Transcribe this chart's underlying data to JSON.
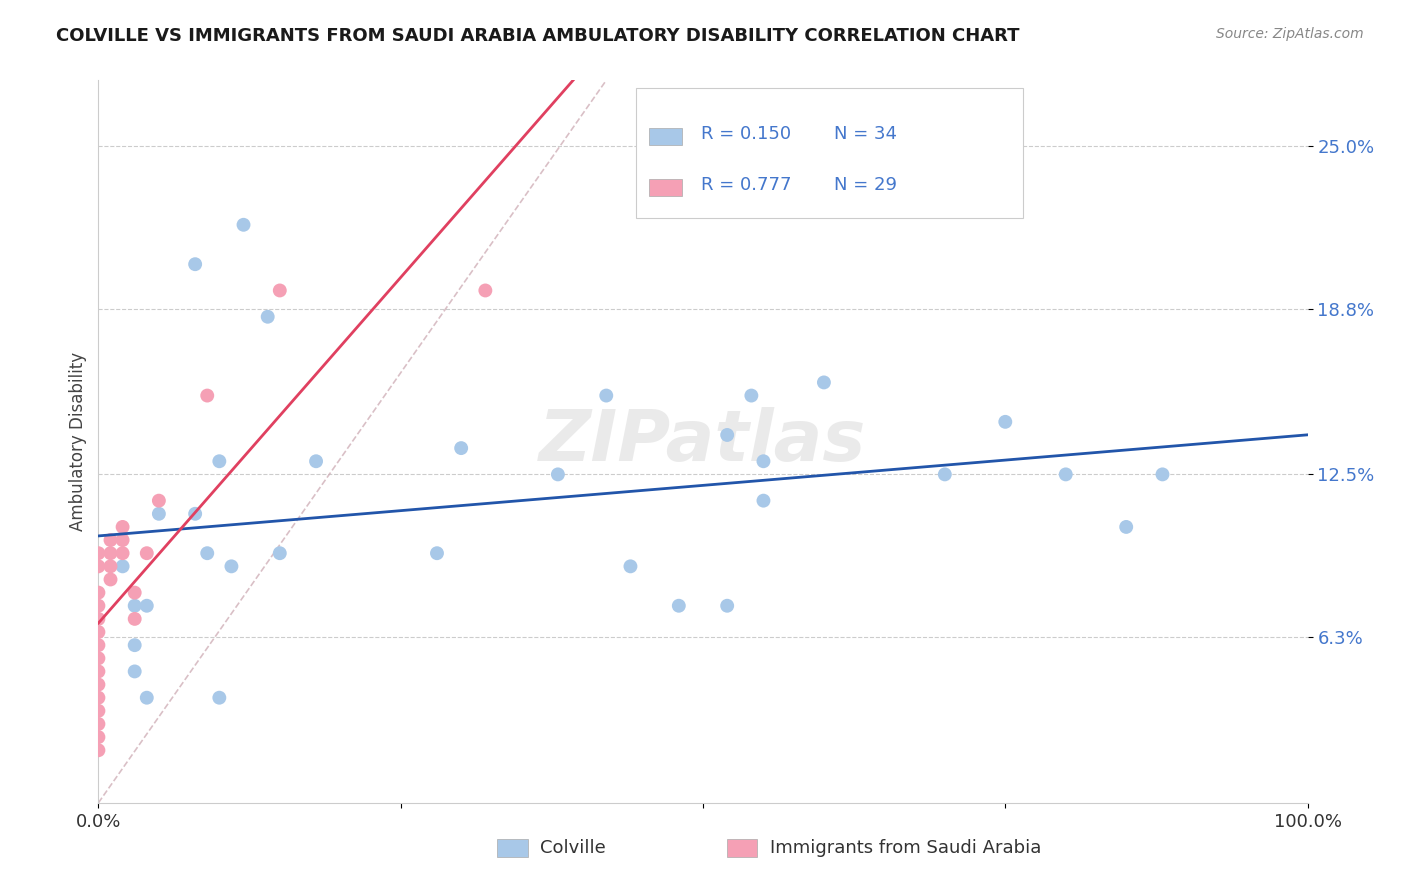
{
  "title": "COLVILLE VS IMMIGRANTS FROM SAUDI ARABIA AMBULATORY DISABILITY CORRELATION CHART",
  "source": "Source: ZipAtlas.com",
  "ylabel": "Ambulatory Disability",
  "ytick_values": [
    0.063,
    0.125,
    0.188,
    0.25
  ],
  "ytick_labels": [
    "6.3%",
    "12.5%",
    "18.8%",
    "25.0%"
  ],
  "xmin": 0.0,
  "xmax": 1.0,
  "ymin": 0.0,
  "ymax": 0.275,
  "colville_color": "#a8c8e8",
  "saudi_color": "#f5a0b5",
  "colville_line_color": "#2255aa",
  "saudi_line_color": "#e04060",
  "dashed_line_color": "#d0b0b8",
  "background_color": "#ffffff",
  "watermark": "ZIPatlas",
  "title_color": "#1a1a1a",
  "source_color": "#888888",
  "tick_color": "#4477cc",
  "colville_x": [
    0.05,
    0.12,
    0.14,
    0.08,
    0.08,
    0.09,
    0.1,
    0.11,
    0.02,
    0.03,
    0.03,
    0.04,
    0.03,
    0.04,
    0.15,
    0.18,
    0.38,
    0.42,
    0.55,
    0.55,
    0.6,
    0.7,
    0.75,
    0.8,
    0.85,
    0.88,
    0.44,
    0.48,
    0.52,
    0.54,
    0.52,
    0.28,
    0.1,
    0.3
  ],
  "colville_y": [
    0.11,
    0.22,
    0.185,
    0.205,
    0.11,
    0.095,
    0.13,
    0.09,
    0.09,
    0.075,
    0.06,
    0.075,
    0.05,
    0.04,
    0.095,
    0.13,
    0.125,
    0.155,
    0.13,
    0.115,
    0.16,
    0.125,
    0.145,
    0.125,
    0.105,
    0.125,
    0.09,
    0.075,
    0.075,
    0.155,
    0.14,
    0.095,
    0.04,
    0.135
  ],
  "saudi_x": [
    0.0,
    0.0,
    0.0,
    0.0,
    0.0,
    0.0,
    0.0,
    0.0,
    0.0,
    0.0,
    0.0,
    0.0,
    0.0,
    0.0,
    0.0,
    0.01,
    0.01,
    0.01,
    0.01,
    0.02,
    0.02,
    0.02,
    0.03,
    0.03,
    0.04,
    0.05,
    0.09,
    0.15,
    0.32
  ],
  "saudi_y": [
    0.02,
    0.025,
    0.03,
    0.035,
    0.04,
    0.045,
    0.05,
    0.055,
    0.06,
    0.065,
    0.07,
    0.075,
    0.08,
    0.09,
    0.095,
    0.085,
    0.09,
    0.095,
    0.1,
    0.095,
    0.1,
    0.105,
    0.07,
    0.08,
    0.095,
    0.115,
    0.155,
    0.195,
    0.195
  ],
  "legend_r_colville": "R = 0.150",
  "legend_n_colville": "N = 34",
  "legend_r_saudi": "R = 0.777",
  "legend_n_saudi": "N = 29"
}
